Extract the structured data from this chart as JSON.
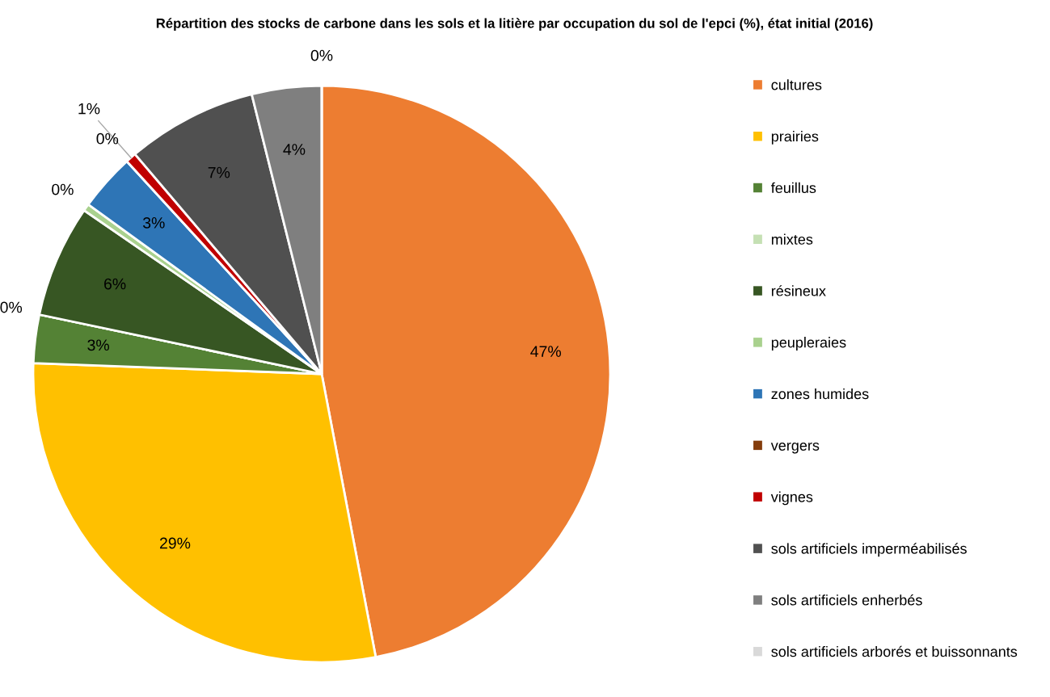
{
  "chart_data": {
    "type": "pie",
    "title": "Répartition des stocks de carbone dans les sols et la litière par occupation du sol de l'epci (%), état initial (2016)",
    "categories": [
      "cultures",
      "prairies",
      "feuillus",
      "mixtes",
      "résineux",
      "peupleraies",
      "zones humides",
      "vergers",
      "vignes",
      "sols artificiels imperméabilisés",
      "sols artificiels enherbés",
      "sols artificiels arborés et buissonnants"
    ],
    "values": [
      47.0,
      28.6,
      2.7,
      0,
      6.3,
      0.4,
      3.2,
      0,
      0.6,
      7.3,
      3.9,
      0
    ],
    "colors": [
      "#ed7d31",
      "#ffc000",
      "#548235",
      "#c5e0b4",
      "#375623",
      "#a9d18e",
      "#2e75b6",
      "#843c0c",
      "#c00000",
      "#505050",
      "#7f7f7f",
      "#d9d9d9"
    ],
    "value_labels": [
      "47%",
      "29%",
      "3%",
      "0%",
      "6%",
      "0%",
      "3%",
      "0%",
      "1%",
      "7%",
      "4%",
      "0%"
    ],
    "legend": "right"
  }
}
